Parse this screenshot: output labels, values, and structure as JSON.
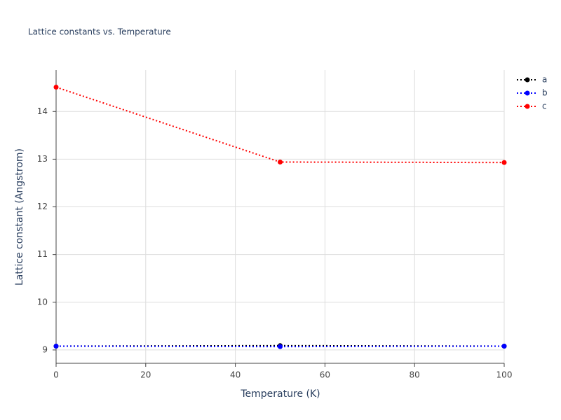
{
  "chart_data": {
    "type": "line",
    "title": "Lattice constants vs. Temperature",
    "x_label": "Temperature (K)",
    "y_label": "Lattice constant (Angstrom)",
    "x": [
      0,
      50,
      100
    ],
    "series": [
      {
        "name": "a",
        "color": "#000000",
        "values": [
          9.08,
          9.09,
          9.08
        ]
      },
      {
        "name": "b",
        "color": "#0000ff",
        "values": [
          9.08,
          9.07,
          9.08
        ]
      },
      {
        "name": "c",
        "color": "#ff0000",
        "values": [
          14.51,
          12.94,
          12.93
        ]
      }
    ],
    "xlim": [
      0,
      100
    ],
    "xticks": [
      0,
      20,
      40,
      60,
      80,
      100
    ],
    "ylim": [
      8.72,
      14.87
    ],
    "yticks": [
      9,
      10,
      11,
      12,
      13,
      14
    ],
    "grid": true,
    "legend": "top-right",
    "line_style": "dotted"
  }
}
